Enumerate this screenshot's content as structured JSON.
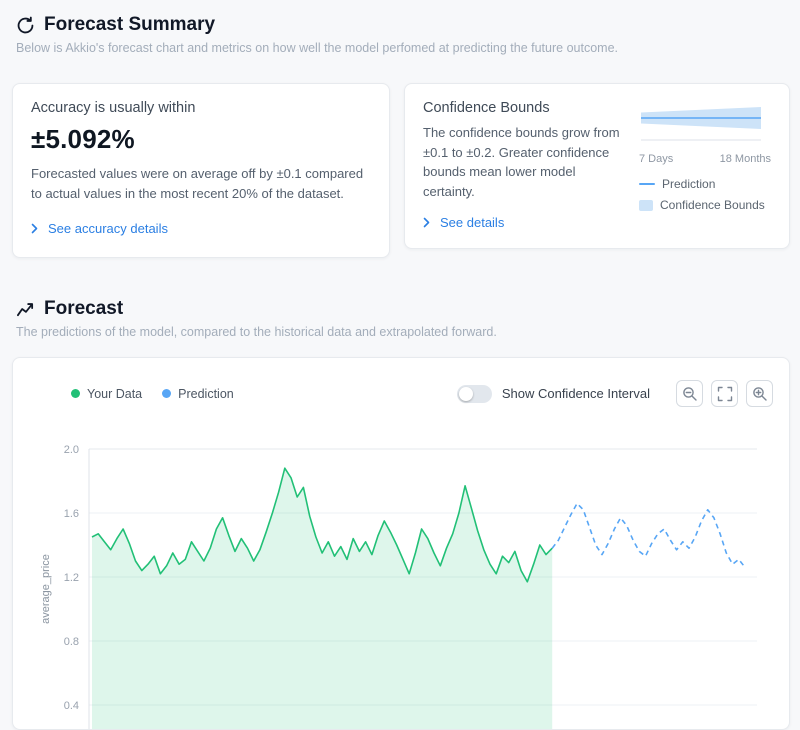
{
  "summary": {
    "title": "Forecast Summary",
    "subtitle": "Below is Akkio's forecast chart and metrics on how well the model perfomed at predicting the future outcome."
  },
  "accuracy_card": {
    "heading": "Accuracy is usually within",
    "value": "±5.092%",
    "description": "Forecasted values were on average off by ±0.1 compared to actual values in the most recent 20% of the dataset.",
    "link_label": "See accuracy details"
  },
  "confidence_card": {
    "heading": "Confidence Bounds",
    "description": "The confidence bounds grow from ±0.1 to ±0.2. Greater confidence bounds mean lower model certainty.",
    "link_label": "See details",
    "x_left": "7 Days",
    "x_right": "18 Months",
    "legend": [
      {
        "label": "Prediction",
        "color": "#58a6f5",
        "swatch": "line"
      },
      {
        "label": "Confidence Bounds",
        "color": "#cde3f8",
        "swatch": "square"
      }
    ]
  },
  "forecast": {
    "title": "Forecast",
    "subtitle": "The predictions of the model, compared to the historical data and extrapolated forward.",
    "legend": [
      {
        "label": "Your Data",
        "color": "#22c077"
      },
      {
        "label": "Prediction",
        "color": "#58a6f5"
      }
    ],
    "toggle_label": "Show Confidence Interval",
    "toggle_on": false,
    "zoom_controls": [
      "zoom-out",
      "reset-zoom",
      "zoom-in"
    ]
  },
  "chart_data": [
    {
      "type": "area",
      "title": "Forecast",
      "ylabel": "average_price",
      "ylim": [
        0.35,
        2.05
      ],
      "yticks": [
        2.0,
        1.6,
        1.2,
        0.8,
        0.4
      ],
      "grid": true,
      "legend_position": "top-left",
      "series": [
        {
          "name": "Your Data",
          "color": "#22c077",
          "fill_color": "rgba(34,192,119,0.15)",
          "style": "solid",
          "values": [
            1.45,
            1.47,
            1.42,
            1.37,
            1.44,
            1.5,
            1.41,
            1.3,
            1.24,
            1.28,
            1.33,
            1.22,
            1.27,
            1.35,
            1.28,
            1.31,
            1.42,
            1.36,
            1.3,
            1.38,
            1.5,
            1.57,
            1.46,
            1.36,
            1.44,
            1.38,
            1.3,
            1.37,
            1.48,
            1.6,
            1.73,
            1.88,
            1.82,
            1.7,
            1.76,
            1.58,
            1.45,
            1.35,
            1.42,
            1.33,
            1.39,
            1.31,
            1.44,
            1.36,
            1.42,
            1.34,
            1.46,
            1.55,
            1.48,
            1.4,
            1.31,
            1.22,
            1.35,
            1.5,
            1.44,
            1.35,
            1.27,
            1.38,
            1.47,
            1.6,
            1.77,
            1.63,
            1.49,
            1.37,
            1.28,
            1.22,
            1.33,
            1.29,
            1.36,
            1.24,
            1.17,
            1.28,
            1.4,
            1.34,
            1.38
          ]
        },
        {
          "name": "Prediction",
          "color": "#58a6f5",
          "style": "dashed",
          "values": [
            1.38,
            1.43,
            1.51,
            1.59,
            1.66,
            1.62,
            1.51,
            1.4,
            1.34,
            1.41,
            1.5,
            1.57,
            1.52,
            1.43,
            1.36,
            1.33,
            1.41,
            1.47,
            1.5,
            1.43,
            1.37,
            1.42,
            1.38,
            1.45,
            1.55,
            1.62,
            1.57,
            1.47,
            1.35,
            1.28,
            1.31,
            1.26
          ]
        }
      ]
    },
    {
      "type": "area",
      "name": "confidence-bounds-mini",
      "x_labels": [
        "7 Days",
        "18 Months"
      ],
      "bound_start": 0.1,
      "bound_end": 0.2,
      "line_color": "#58a6f5",
      "fill_color": "#cde3f8"
    }
  ]
}
